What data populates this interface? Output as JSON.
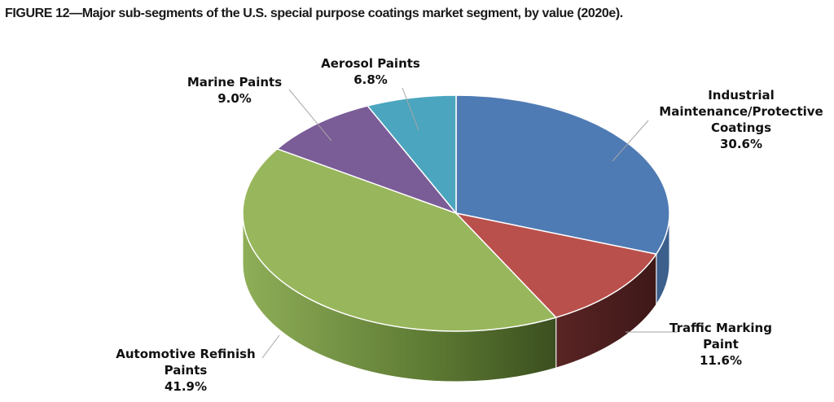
{
  "figure_title": "FIGURE 12—Major sub-segments of the U.S. special purpose coatings market segment, by value (2020e).",
  "chart_data": {
    "type": "pie",
    "style": "3d",
    "title": "FIGURE 12—Major sub-segments of the U.S. special purpose coatings market segment, by value (2020e).",
    "unit": "%",
    "legend": "none",
    "slices": [
      {
        "name": "Industrial Maintenance/Protective Coatings",
        "label_lines": [
          "Industrial",
          "Maintenance/Protective",
          "Coatings"
        ],
        "value_label": "30.6%",
        "value": 30.6,
        "color": "#4f7bb4",
        "side_color": "#3c5f8c"
      },
      {
        "name": "Traffic Marking Paint",
        "label_lines": [
          "Traffic Marking",
          "Paint"
        ],
        "value_label": "11.6%",
        "value": 11.6,
        "color": "#b9504c",
        "side_color": "#4e2020"
      },
      {
        "name": "Automotive Refinish Paints",
        "label_lines": [
          "Automotive Refinish",
          "Paints"
        ],
        "value_label": "41.9%",
        "value": 41.9,
        "color": "#98b65c",
        "side_color": "#6b8a3e"
      },
      {
        "name": "Marine Paints",
        "label_lines": [
          "Marine Paints"
        ],
        "value_label": "9.0%",
        "value": 9.0,
        "color": "#7a5c97",
        "side_color": "#574270"
      },
      {
        "name": "Aerosol Paints",
        "label_lines": [
          "Aerosol Paints"
        ],
        "value_label": "6.8%",
        "value": 6.8,
        "color": "#4ba5be",
        "side_color": "#357688"
      }
    ]
  }
}
